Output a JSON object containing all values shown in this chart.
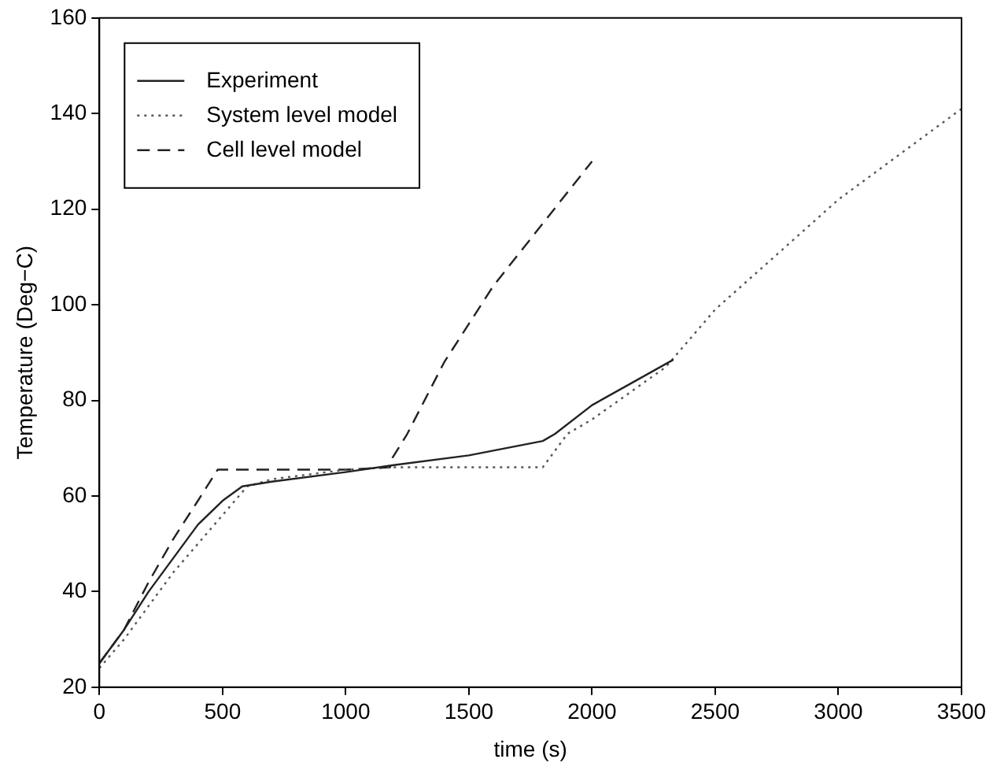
{
  "chart_data": {
    "type": "line",
    "xlabel": "time (s)",
    "ylabel": "Temperature (Deg−C)",
    "xlim": [
      0,
      3500
    ],
    "ylim": [
      20,
      160
    ],
    "xticks": [
      0,
      500,
      1000,
      1500,
      2000,
      2500,
      3000,
      3500
    ],
    "yticks": [
      20,
      40,
      60,
      80,
      100,
      120,
      140,
      160
    ],
    "grid": false,
    "legend": "top left",
    "marker": "none",
    "series": [
      {
        "name": "Experiment",
        "color": "#222222",
        "line_style": "solid",
        "x": [
          0,
          100,
          200,
          300,
          400,
          500,
          580,
          700,
          1000,
          1200,
          1500,
          1800,
          1850,
          2000,
          2330
        ],
        "values": [
          25,
          32,
          40,
          47,
          54,
          59,
          62,
          63,
          65,
          66.5,
          68.5,
          71.5,
          73,
          79,
          88.5
        ]
      },
      {
        "name": "System level model",
        "color": "#555555",
        "line_style": "dotted",
        "x": [
          0,
          100,
          200,
          300,
          400,
          500,
          600,
          700,
          1000,
          1200,
          1800,
          1900,
          2000,
          2300,
          2500,
          3000,
          3500
        ],
        "values": [
          24,
          30,
          37,
          44,
          50,
          56,
          62,
          63.5,
          65.5,
          66,
          66,
          73,
          76,
          87,
          99,
          122,
          141
        ]
      },
      {
        "name": "Cell level model",
        "color": "#222222",
        "line_style": "dashed",
        "x": [
          0,
          100,
          200,
          300,
          400,
          480,
          1000,
          1180,
          1190,
          1250,
          1400,
          1600,
          1800,
          2000
        ],
        "values": [
          25,
          32,
          42,
          51,
          59,
          65.5,
          65.5,
          66,
          68,
          73,
          88,
          104,
          117,
          130
        ]
      }
    ]
  }
}
